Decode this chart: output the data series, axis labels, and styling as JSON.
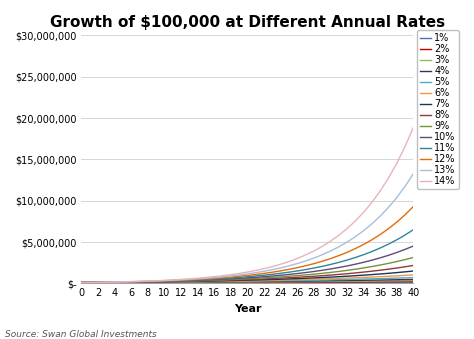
{
  "title": "Growth of $100,000 at Different Annual Rates",
  "xlabel": "Year",
  "source": "Source: Swan Global Investments",
  "principal": 100000,
  "years": 40,
  "rates": [
    0.01,
    0.02,
    0.03,
    0.04,
    0.05,
    0.06,
    0.07,
    0.08,
    0.09,
    0.1,
    0.11,
    0.12,
    0.13,
    0.14
  ],
  "rate_labels": [
    "1%",
    "2%",
    "3%",
    "4%",
    "5%",
    "6%",
    "7%",
    "8%",
    "9%",
    "10%",
    "11%",
    "12%",
    "13%",
    "14%"
  ],
  "color_map": [
    "#4472C4",
    "#C00000",
    "#9BBB59",
    "#403152",
    "#4BACC6",
    "#F79646",
    "#17375E",
    "#953735",
    "#76923C",
    "#604A7B",
    "#31849B",
    "#E36C09",
    "#A5BFDD",
    "#E8B4B8"
  ],
  "ylim": [
    0,
    30000000
  ],
  "yticks": [
    0,
    5000000,
    10000000,
    15000000,
    20000000,
    25000000,
    30000000
  ],
  "xticks": [
    0,
    2,
    4,
    6,
    8,
    10,
    12,
    14,
    16,
    18,
    20,
    22,
    24,
    26,
    28,
    30,
    32,
    34,
    36,
    38,
    40
  ],
  "background_color": "#FFFFFF",
  "grid_color": "#D0D0D0",
  "title_fontsize": 11,
  "tick_fontsize": 7,
  "legend_fontsize": 7,
  "source_fontsize": 6.5,
  "linewidth": 1.0
}
